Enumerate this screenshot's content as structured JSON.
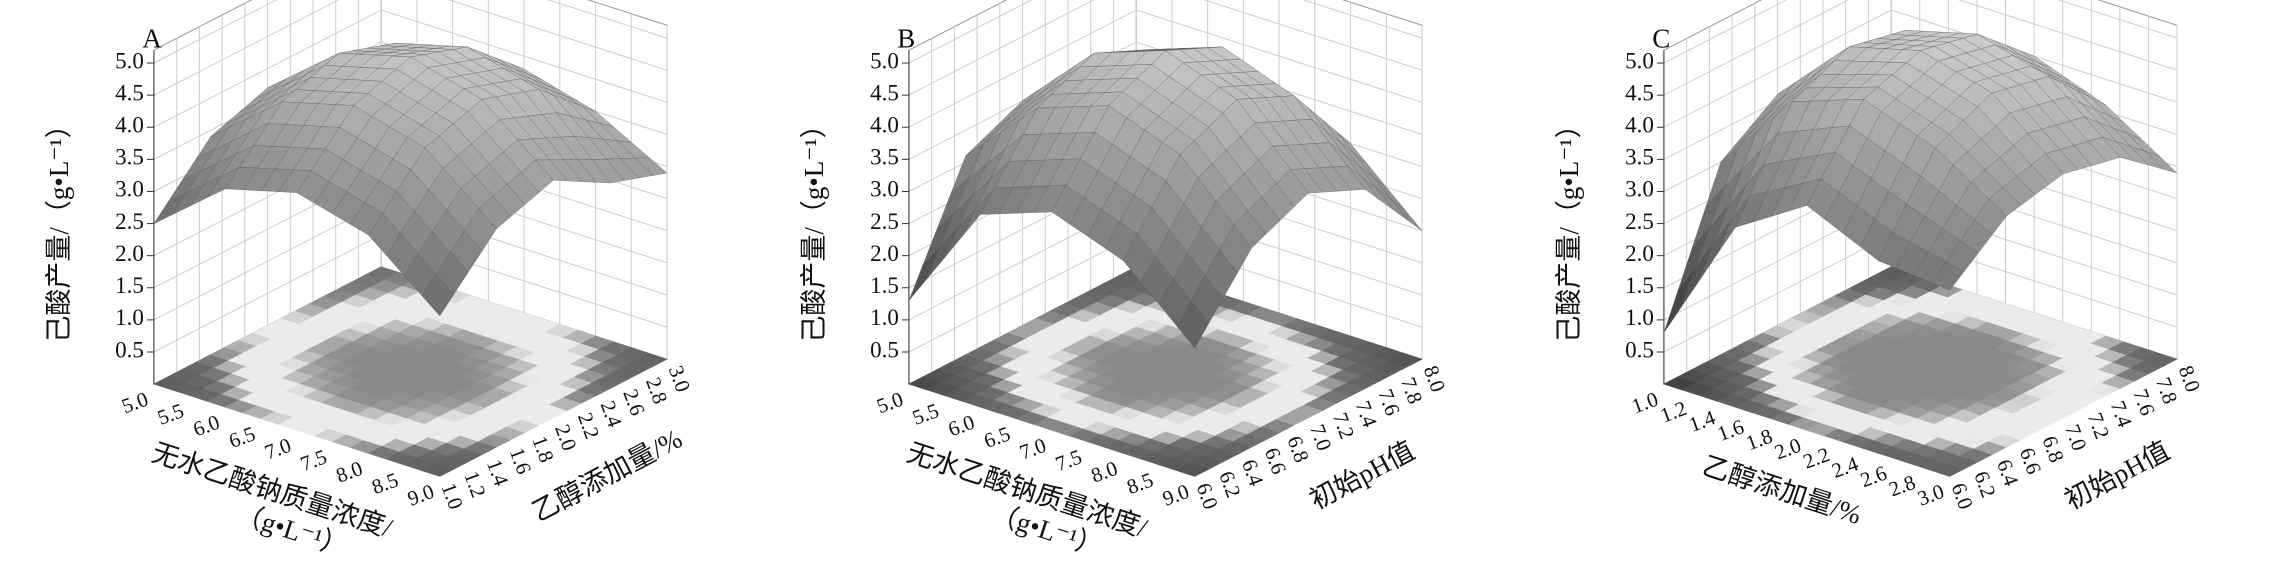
{
  "chart_data": [
    {
      "type": "surface",
      "panel": "A",
      "z_label": "己酸产量/（g•L⁻¹）",
      "x_label": [
        "无水乙酸钠质量浓度/",
        "（g•L⁻¹）"
      ],
      "y_label": [
        "乙醇添加量/%"
      ],
      "xlim": [
        5,
        9
      ],
      "ylim": [
        1,
        3
      ],
      "zlim": [
        0,
        5.2
      ],
      "xticks": [
        {
          "value": 5,
          "label": "5.0"
        },
        5.5,
        {
          "value": 6,
          "label": "6.0"
        },
        6.5,
        {
          "value": 7,
          "label": "7.0"
        },
        7.5,
        {
          "value": 8,
          "label": "8.0"
        },
        8.5,
        {
          "value": 9,
          "label": "9.0"
        }
      ],
      "yticks": [
        {
          "value": 1,
          "label": "1.0"
        },
        1.2,
        1.4,
        1.6,
        1.8,
        {
          "value": 2,
          "label": "2.0"
        },
        2.2,
        2.4,
        2.6,
        2.8,
        {
          "value": 3,
          "label": "3.0"
        }
      ],
      "zticks": [
        0.5,
        {
          "value": 1,
          "label": "1.0"
        },
        1.5,
        {
          "value": 2,
          "label": "2.0"
        },
        2.5,
        {
          "value": 3,
          "label": "3.0"
        },
        3.5,
        {
          "value": 4,
          "label": "4.0"
        },
        4.5,
        {
          "value": 5,
          "label": "5.0"
        }
      ],
      "x": [
        5,
        6,
        7,
        8,
        9
      ],
      "y": [
        1,
        1.5,
        2,
        2.5,
        3
      ],
      "z": [
        [
          2.5,
          3.4,
          3.7,
          3.4,
          2.5
        ],
        [
          3.4,
          4.3,
          4.6,
          4.3,
          3.4
        ],
        [
          3.7,
          4.6,
          4.9,
          4.6,
          3.7
        ],
        [
          3.4,
          4.3,
          4.6,
          4.3,
          3.2
        ],
        [
          3.3,
          3.6,
          3.8,
          3.5,
          2.9
        ]
      ]
    },
    {
      "type": "surface",
      "panel": "B",
      "z_label": "己酸产量/（g•L⁻¹）",
      "x_label": [
        "无水乙酸钠质量浓度/",
        "（g•L⁻¹）"
      ],
      "y_label": [
        "初始pH值"
      ],
      "xlim": [
        5,
        9
      ],
      "ylim": [
        6,
        8
      ],
      "zlim": [
        0,
        5.2
      ],
      "xticks": [
        {
          "value": 5,
          "label": "5.0"
        },
        5.5,
        {
          "value": 6,
          "label": "6.0"
        },
        6.5,
        {
          "value": 7,
          "label": "7.0"
        },
        7.5,
        {
          "value": 8,
          "label": "8.0"
        },
        8.5,
        {
          "value": 9,
          "label": "9.0"
        }
      ],
      "yticks": [
        {
          "value": 6,
          "label": "6.0"
        },
        6.2,
        6.4,
        6.6,
        6.8,
        {
          "value": 7,
          "label": "7.0"
        },
        7.2,
        7.4,
        7.6,
        7.8,
        {
          "value": 8,
          "label": "8.0"
        }
      ],
      "zticks": [
        0.5,
        {
          "value": 1,
          "label": "1.0"
        },
        1.5,
        {
          "value": 2,
          "label": "2.0"
        },
        2.5,
        {
          "value": 3,
          "label": "3.0"
        },
        3.5,
        {
          "value": 4,
          "label": "4.0"
        },
        4.5,
        {
          "value": 5,
          "label": "5.0"
        }
      ],
      "x": [
        5,
        6,
        7,
        8,
        9
      ],
      "y": [
        6,
        6.5,
        7,
        7.5,
        8
      ],
      "z": [
        [
          1.3,
          3.0,
          3.4,
          3.0,
          2.0
        ],
        [
          3.1,
          4.2,
          4.6,
          4.2,
          3.1
        ],
        [
          3.5,
          4.6,
          5.0,
          4.6,
          3.5
        ],
        [
          3.1,
          4.2,
          4.6,
          4.2,
          3.1
        ],
        [
          2.8,
          3.0,
          3.4,
          3.0,
          2.0
        ]
      ]
    },
    {
      "type": "surface",
      "panel": "C",
      "z_label": "己酸产量/（g•L⁻¹）",
      "x_label": [
        "乙醇添加量/%"
      ],
      "y_label": [
        "初始pH值"
      ],
      "xlim": [
        1,
        3
      ],
      "ylim": [
        6,
        8
      ],
      "zlim": [
        0,
        5.2
      ],
      "xticks": [
        {
          "value": 1,
          "label": "1.0"
        },
        1.2,
        1.4,
        1.6,
        1.8,
        {
          "value": 2,
          "label": "2.0"
        },
        2.2,
        2.4,
        2.6,
        2.8,
        {
          "value": 3,
          "label": "3.0"
        }
      ],
      "yticks": [
        {
          "value": 6,
          "label": "6.0"
        },
        6.2,
        6.4,
        6.6,
        6.8,
        {
          "value": 7,
          "label": "7.0"
        },
        7.2,
        7.4,
        7.6,
        7.8,
        {
          "value": 8,
          "label": "8.0"
        }
      ],
      "zticks": [
        0.5,
        {
          "value": 1,
          "label": "1.0"
        },
        1.5,
        {
          "value": 2,
          "label": "2.0"
        },
        2.5,
        {
          "value": 3,
          "label": "3.0"
        },
        3.5,
        {
          "value": 4,
          "label": "4.0"
        },
        4.5,
        {
          "value": 5,
          "label": "5.0"
        }
      ],
      "x": [
        1,
        1.5,
        2,
        2.5,
        3
      ],
      "y": [
        6,
        6.5,
        7,
        7.5,
        8
      ],
      "z": [
        [
          0.8,
          2.8,
          3.5,
          3.0,
          2.9
        ],
        [
          3.0,
          4.3,
          4.7,
          4.3,
          3.6
        ],
        [
          3.6,
          4.7,
          5.0,
          4.7,
          3.8
        ],
        [
          3.4,
          4.5,
          4.8,
          4.5,
          3.6
        ],
        [
          2.4,
          3.6,
          4.0,
          3.6,
          2.9
        ]
      ]
    }
  ]
}
